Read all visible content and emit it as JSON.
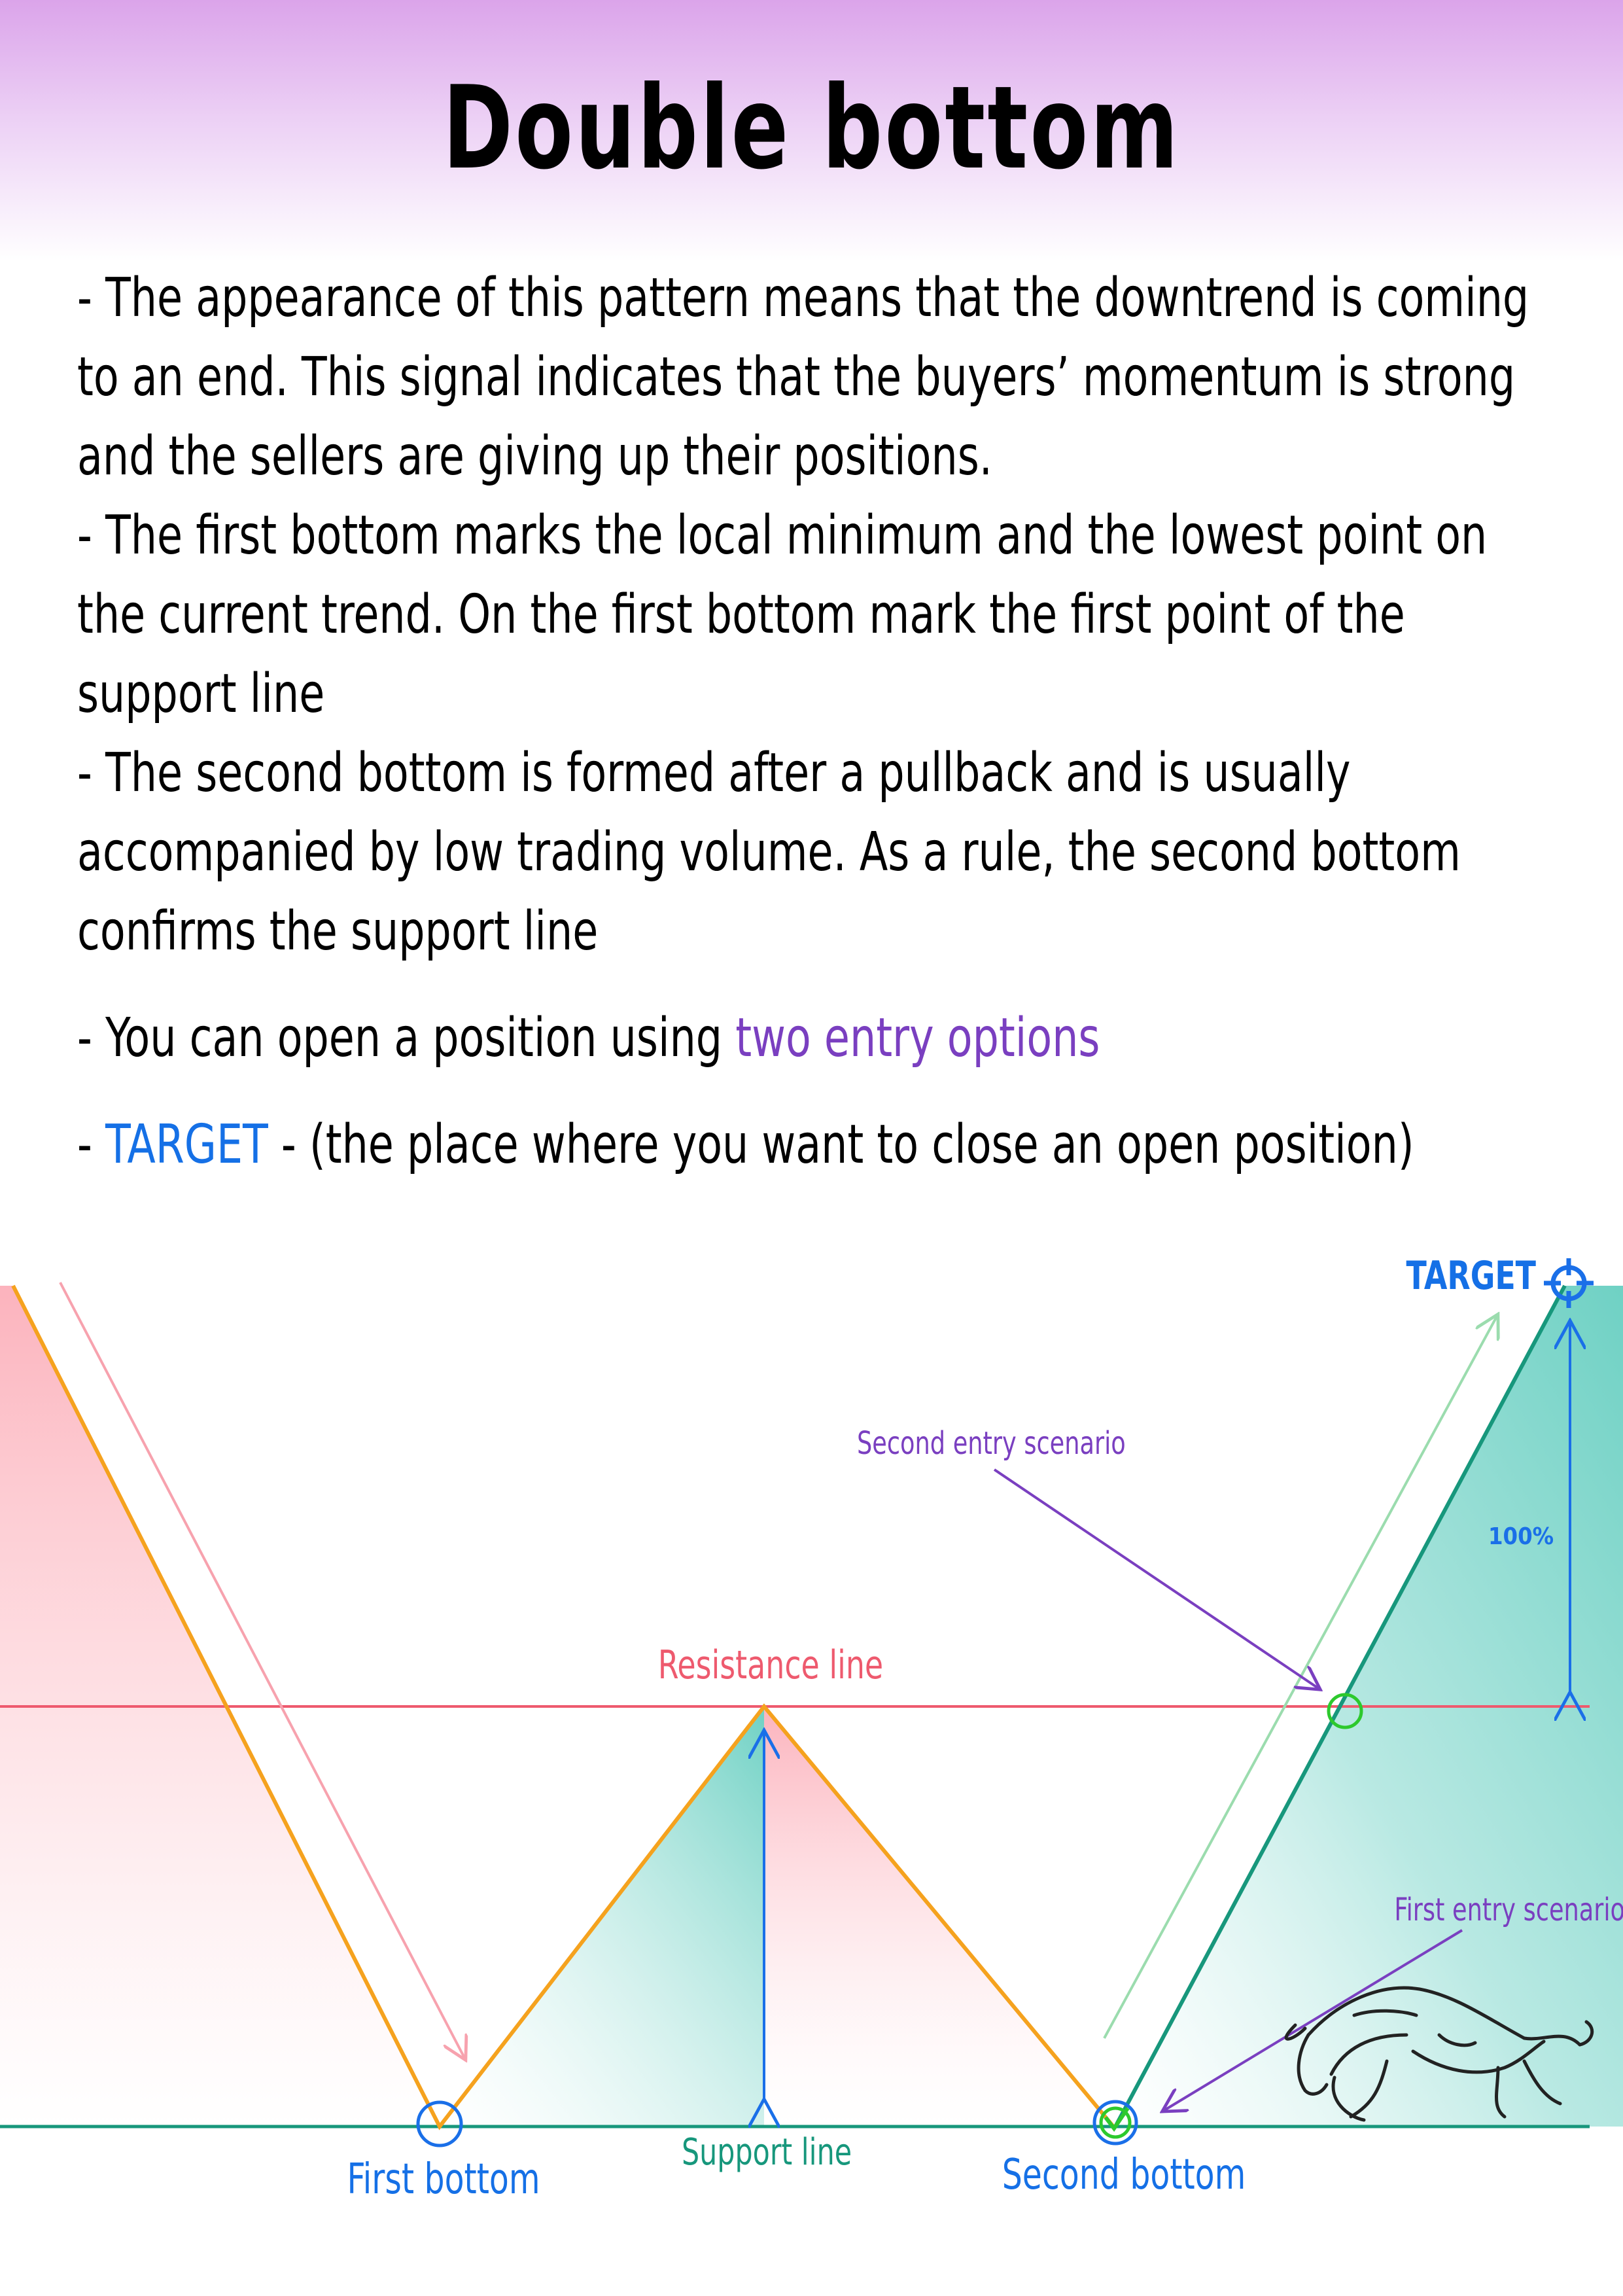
{
  "title": "Double bottom",
  "paragraphs": [
    {
      "lines": [
        "- The appearance of this pattern means that the downtrend is coming",
        "  to an end. This signal indicates that the buyers’ momentum is strong",
        " and the sellers are giving up their positions."
      ]
    },
    {
      "lines": [
        "- The first bottom marks the local minimum and the lowest point on",
        "the current trend. On the first bottom mark the first point of the",
        "support line"
      ]
    },
    {
      "lines": [
        "- The second bottom is formed after a pullback and is usually",
        "accompanied by low trading volume. As a rule, the second bottom",
        "confirms the support line"
      ]
    }
  ],
  "entry_line": {
    "prefix": "- You can open a position using ",
    "highlight": "two entry options"
  },
  "target_line": {
    "prefix": "- ",
    "highlight": "TARGET",
    "suffix": " - (the place where you want to close an open position)"
  },
  "diagram": {
    "labels": {
      "target": "TARGET",
      "second_entry": "Second entry scenario",
      "percent": "100%",
      "resistance": "Resistance line",
      "first_entry": "First entry scenario",
      "first_bottom": "First bottom",
      "support": "Support line",
      "second_bottom": "Second bottom"
    },
    "colors": {
      "price_line": "#f5a21e",
      "resistance_line": "#ee5a6e",
      "support_line": "#17977c",
      "uptrend_line": "#17977c",
      "bottom_marker": "#1a6fe8",
      "entry_marker": "#2dc92d",
      "measure_arrow": "#1a6fe8",
      "annotation": "#7a3fc0",
      "down_fill": "#fcb3bd",
      "up_fill": "#7fd7cc"
    },
    "icons": [
      "target-crosshair-icon",
      "checkmark-icon",
      "bull-icon"
    ]
  }
}
